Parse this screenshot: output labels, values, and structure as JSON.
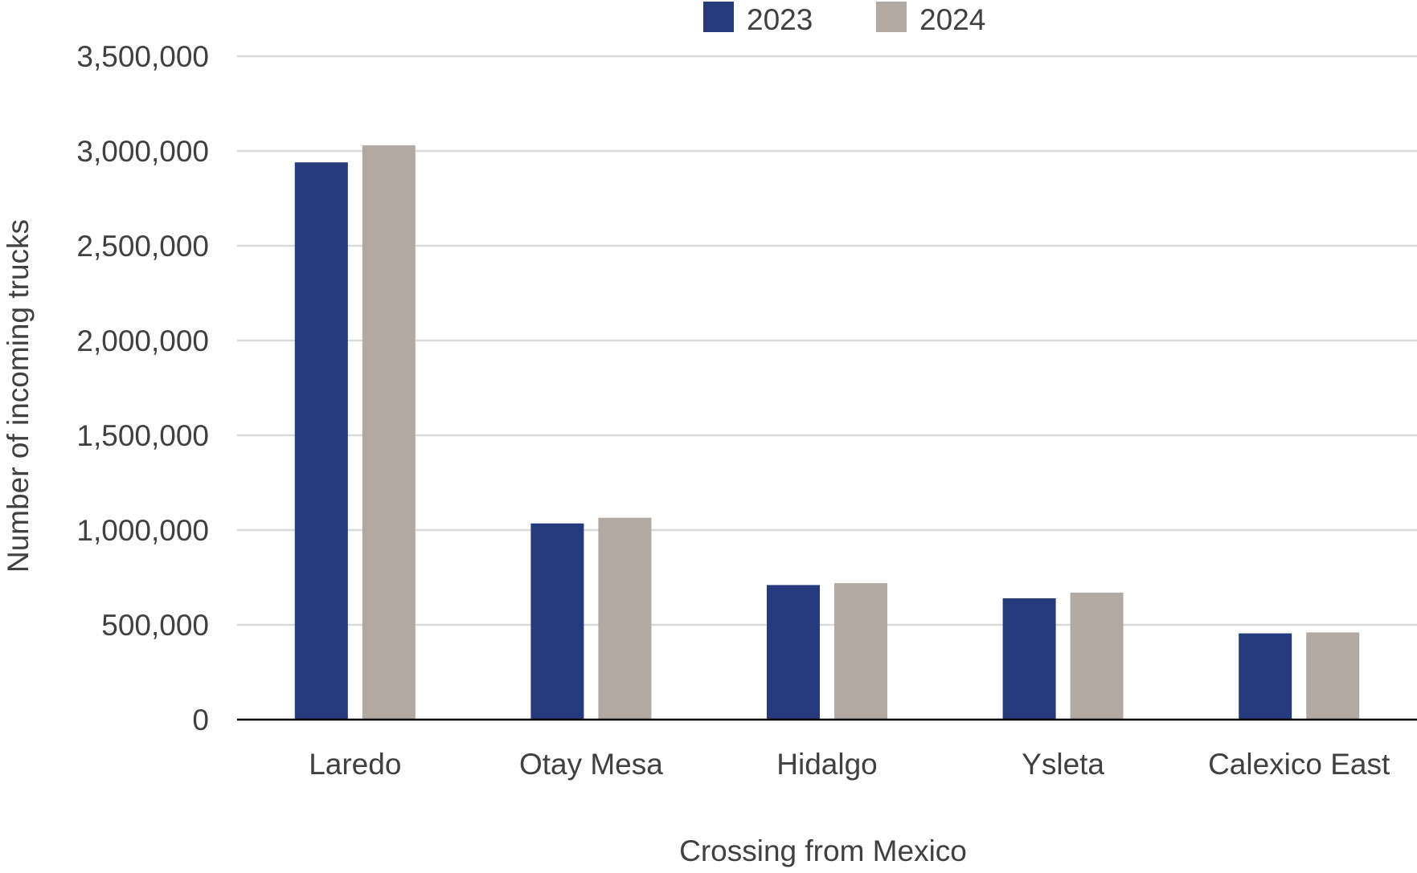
{
  "chart_data": {
    "type": "bar",
    "title": "",
    "xlabel": "Crossing from Mexico",
    "ylabel": "Number of incoming trucks",
    "categories": [
      "Laredo",
      "Otay Mesa",
      "Hidalgo",
      "Ysleta",
      "Calexico East"
    ],
    "series": [
      {
        "name": "2023",
        "color": "#253b7d",
        "values": [
          2940000,
          1035000,
          710000,
          640000,
          455000
        ]
      },
      {
        "name": "2024",
        "color": "#b2a9a3",
        "values": [
          3030000,
          1065000,
          720000,
          670000,
          460000
        ]
      }
    ],
    "ylim": [
      0,
      3500000
    ],
    "yticks": [
      0,
      500000,
      1000000,
      1500000,
      2000000,
      2500000,
      3000000,
      3500000
    ],
    "ytick_labels": [
      "0",
      "500,000",
      "1,000,000",
      "1,500,000",
      "2,000,000",
      "2,500,000",
      "3,000,000",
      "3,500,000"
    ],
    "grid": true,
    "legend_position": "top-center"
  }
}
